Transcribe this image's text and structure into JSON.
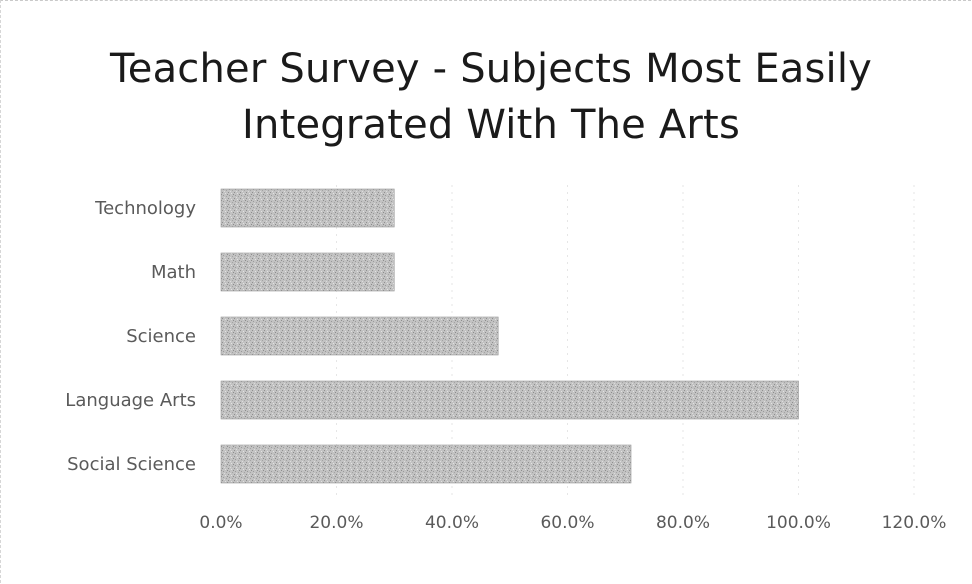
{
  "chart_data": {
    "type": "bar",
    "orientation": "horizontal",
    "title": "Teacher Survey - Subjects Most Easily Integrated  With The Arts",
    "title_lines": [
      "Teacher Survey - Subjects Most Easily",
      "Integrated  With The Arts"
    ],
    "categories": [
      "Technology",
      "Math",
      "Science",
      "Language Arts",
      "Social Science"
    ],
    "values": [
      0.3,
      0.3,
      0.48,
      1.0,
      0.71
    ],
    "xlim": [
      0,
      1.2
    ],
    "x_ticks": [
      0,
      0.2,
      0.4,
      0.6,
      0.8,
      1.0,
      1.2
    ],
    "x_tick_labels": [
      "0.0%",
      "20.0%",
      "40.0%",
      "60.0%",
      "80.0%",
      "100.0%",
      "120.0%"
    ],
    "xlabel": "",
    "ylabel": "",
    "grid": true,
    "legend": "none",
    "bar_color": "#b5b5b5"
  }
}
